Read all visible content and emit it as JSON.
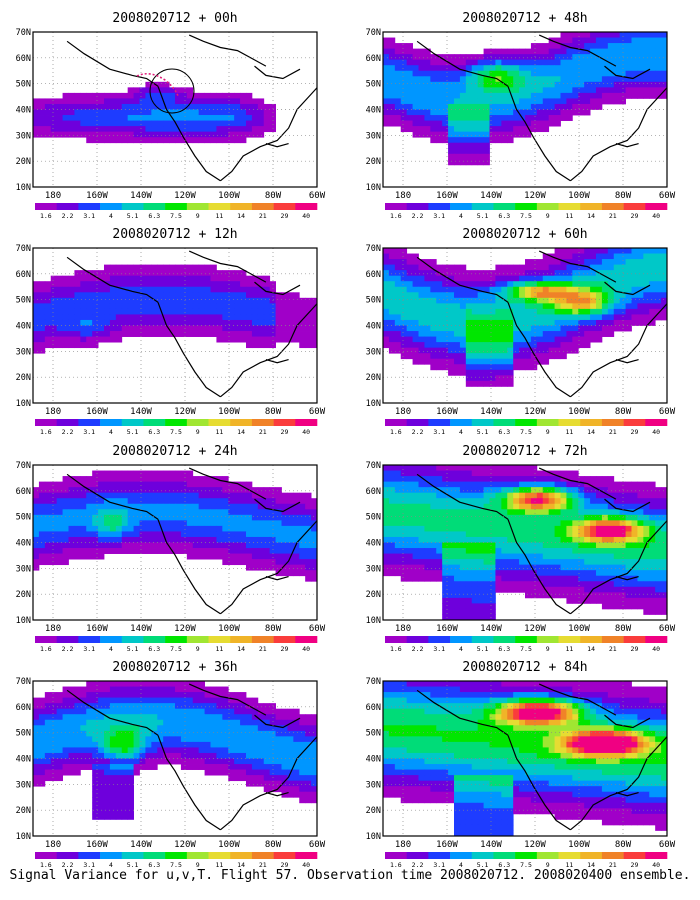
{
  "footer": "Signal Variance for u,v,T. Flight 57. Observation time 2008020712. 2008020400 ensemble.",
  "axes": {
    "lat_labels": [
      "70N",
      "60N",
      "50N",
      "40N",
      "30N",
      "20N",
      "10N"
    ],
    "lon_labels": [
      "180",
      "160W",
      "140W",
      "120W",
      "100W",
      "80W",
      "60W"
    ],
    "lon_range": [
      -190,
      -60
    ],
    "lat_range": [
      10,
      70
    ]
  },
  "colorbar": {
    "labels": [
      "1.6",
      "2.2",
      "3.1",
      "4",
      "5.1",
      "6.3",
      "7.5",
      "9",
      "11",
      "14",
      "21",
      "29",
      "40"
    ],
    "colors": [
      "#a000c8",
      "#6e00dc",
      "#1e3cff",
      "#0096ff",
      "#00c8c8",
      "#00dc78",
      "#00e600",
      "#a0e632",
      "#e6dc32",
      "#f0b428",
      "#f08228",
      "#fa3c3c",
      "#f00082"
    ]
  },
  "panels": [
    {
      "title": "2008020712 + 00h",
      "col": 0,
      "row": 0
    },
    {
      "title": "2008020712 + 48h",
      "col": 1,
      "row": 0
    },
    {
      "title": "2008020712 + 12h",
      "col": 0,
      "row": 1
    },
    {
      "title": "2008020712 + 60h",
      "col": 1,
      "row": 1
    },
    {
      "title": "2008020712 + 24h",
      "col": 0,
      "row": 2
    },
    {
      "title": "2008020712 + 72h",
      "col": 1,
      "row": 2
    },
    {
      "title": "2008020712 + 36h",
      "col": 0,
      "row": 3
    },
    {
      "title": "2008020712 + 84h",
      "col": 1,
      "row": 3
    }
  ]
}
